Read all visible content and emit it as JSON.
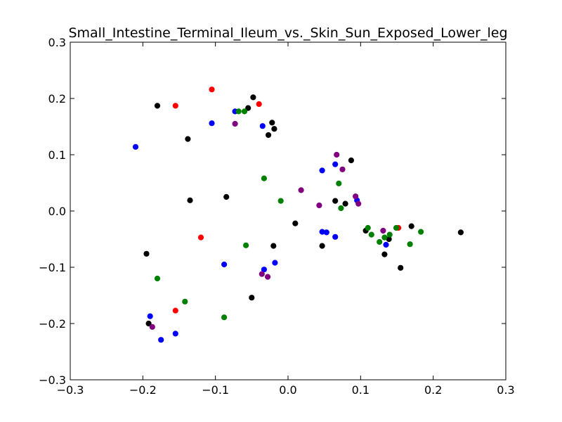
{
  "chart_data": {
    "type": "scatter",
    "title": "Small_Intestine_Terminal_Ileum_vs._Skin_Sun_Exposed_Lower_leg",
    "xlabel": "",
    "ylabel": "",
    "xlim": [
      -0.3,
      0.3
    ],
    "ylim": [
      -0.3,
      0.3
    ],
    "grid": false,
    "legend": "none",
    "x_ticks": [
      -0.3,
      -0.2,
      -0.1,
      0.0,
      0.1,
      0.2,
      0.3
    ],
    "x_tick_labels": [
      "−0.3",
      "−0.2",
      "−0.1",
      "0.0",
      "0.1",
      "0.2",
      "0.3"
    ],
    "y_ticks": [
      0.3,
      0.2,
      0.1,
      0.0,
      -0.1,
      -0.2,
      -0.3
    ],
    "y_tick_labels": [
      "0.3",
      "0.2",
      "0.1",
      "0.0",
      "−0.1",
      "−0.2",
      "−0.3"
    ],
    "series": [
      {
        "color": "#ff0000",
        "points": [
          [
            -0.105,
            0.216
          ],
          [
            -0.155,
            0.187
          ],
          [
            -0.04,
            0.19
          ],
          [
            -0.12,
            -0.047
          ],
          [
            -0.155,
            -0.177
          ],
          [
            0.152,
            -0.03
          ]
        ]
      },
      {
        "color": "#000000",
        "points": [
          [
            -0.18,
            0.187
          ],
          [
            -0.048,
            0.202
          ],
          [
            -0.055,
            0.183
          ],
          [
            -0.022,
            0.157
          ],
          [
            -0.019,
            0.146
          ],
          [
            -0.027,
            0.135
          ],
          [
            -0.138,
            0.128
          ],
          [
            -0.135,
            0.019
          ],
          [
            -0.085,
            0.025
          ],
          [
            0.01,
            -0.022
          ],
          [
            -0.02,
            -0.062
          ],
          [
            -0.195,
            -0.076
          ],
          [
            -0.05,
            -0.154
          ],
          [
            -0.192,
            -0.2
          ],
          [
            0.047,
            -0.062
          ],
          [
            0.065,
            0.018
          ],
          [
            0.079,
            0.013
          ],
          [
            0.087,
            0.09
          ],
          [
            0.107,
            -0.035
          ],
          [
            0.133,
            -0.077
          ],
          [
            0.139,
            -0.05
          ],
          [
            0.155,
            -0.101
          ],
          [
            0.17,
            -0.027
          ],
          [
            0.238,
            -0.038
          ]
        ]
      },
      {
        "color": "#0000ff",
        "points": [
          [
            -0.21,
            0.114
          ],
          [
            -0.105,
            0.156
          ],
          [
            -0.073,
            0.177
          ],
          [
            -0.035,
            0.151
          ],
          [
            0.047,
            0.072
          ],
          [
            0.065,
            0.083
          ],
          [
            0.095,
            0.019
          ],
          [
            0.047,
            -0.037
          ],
          [
            0.053,
            -0.038
          ],
          [
            0.065,
            -0.046
          ],
          [
            0.135,
            -0.06
          ],
          [
            -0.088,
            -0.095
          ],
          [
            -0.033,
            -0.104
          ],
          [
            -0.018,
            -0.092
          ],
          [
            -0.19,
            -0.187
          ],
          [
            -0.175,
            -0.229
          ],
          [
            -0.155,
            -0.218
          ]
        ]
      },
      {
        "color": "#008000",
        "points": [
          [
            -0.068,
            0.177
          ],
          [
            -0.06,
            0.177
          ],
          [
            -0.033,
            0.058
          ],
          [
            -0.01,
            0.018
          ],
          [
            0.07,
            0.049
          ],
          [
            0.073,
            0.005
          ],
          [
            0.11,
            -0.03
          ],
          [
            0.115,
            -0.042
          ],
          [
            0.126,
            -0.055
          ],
          [
            0.133,
            -0.047
          ],
          [
            0.14,
            -0.042
          ],
          [
            0.149,
            -0.03
          ],
          [
            0.168,
            -0.059
          ],
          [
            0.183,
            -0.037
          ],
          [
            -0.058,
            -0.061
          ],
          [
            -0.18,
            -0.12
          ],
          [
            -0.142,
            -0.161
          ],
          [
            -0.088,
            -0.189
          ]
        ]
      },
      {
        "color": "#800080",
        "points": [
          [
            -0.073,
            0.155
          ],
          [
            0.067,
            0.1
          ],
          [
            0.075,
            0.074
          ],
          [
            0.018,
            0.037
          ],
          [
            0.043,
            0.01
          ],
          [
            0.093,
            0.026
          ],
          [
            0.097,
            0.013
          ],
          [
            0.131,
            -0.035
          ],
          [
            -0.036,
            -0.112
          ],
          [
            -0.028,
            -0.117
          ],
          [
            -0.187,
            -0.206
          ]
        ]
      }
    ]
  }
}
